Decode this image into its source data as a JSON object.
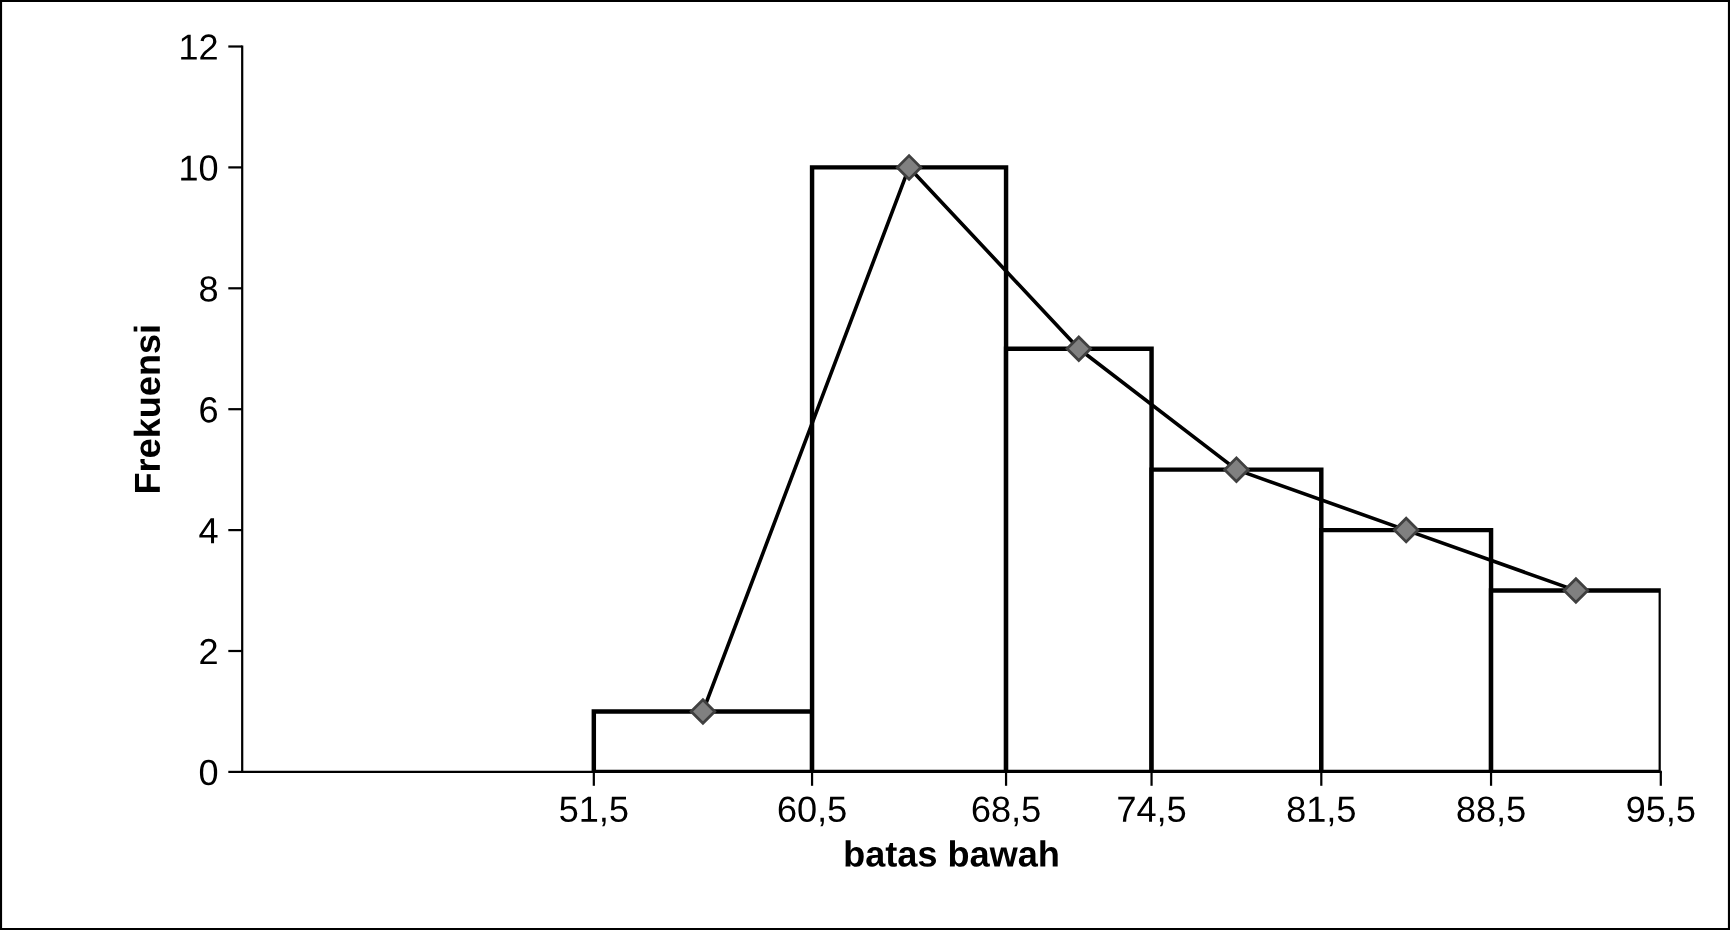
{
  "chart_data": {
    "type": "histogram",
    "xlabel": "batas bawah",
    "ylabel": "Frekuensi",
    "bins": [
      51.5,
      60.5,
      68.5,
      74.5,
      81.5,
      88.5,
      95.5
    ],
    "values": [
      1,
      10,
      7,
      5,
      4,
      3
    ],
    "color": "#ffffff",
    "series": [
      {
        "type": "line",
        "color": "#000000",
        "x": [
          56,
          64.5,
          71.5,
          78,
          85,
          92
        ],
        "values": [
          1,
          10,
          7,
          5,
          4,
          3
        ],
        "marker": "diamond"
      }
    ],
    "xlim": [
      37,
      95.5
    ],
    "xticks": [
      {
        "value": 51.5,
        "label": "51,5"
      },
      {
        "value": 60.5,
        "label": "60,5"
      },
      {
        "value": 68.5,
        "label": "68,5"
      },
      {
        "value": 74.5,
        "label": "74,5"
      },
      {
        "value": 81.5,
        "label": "81,5"
      },
      {
        "value": 88.5,
        "label": "88,5"
      },
      {
        "value": 95.5,
        "label": "95,5"
      }
    ],
    "ylim": [
      0,
      12
    ],
    "yticks": [
      0,
      2,
      4,
      6,
      8,
      10,
      12
    ],
    "grid": false,
    "legend": false
  }
}
